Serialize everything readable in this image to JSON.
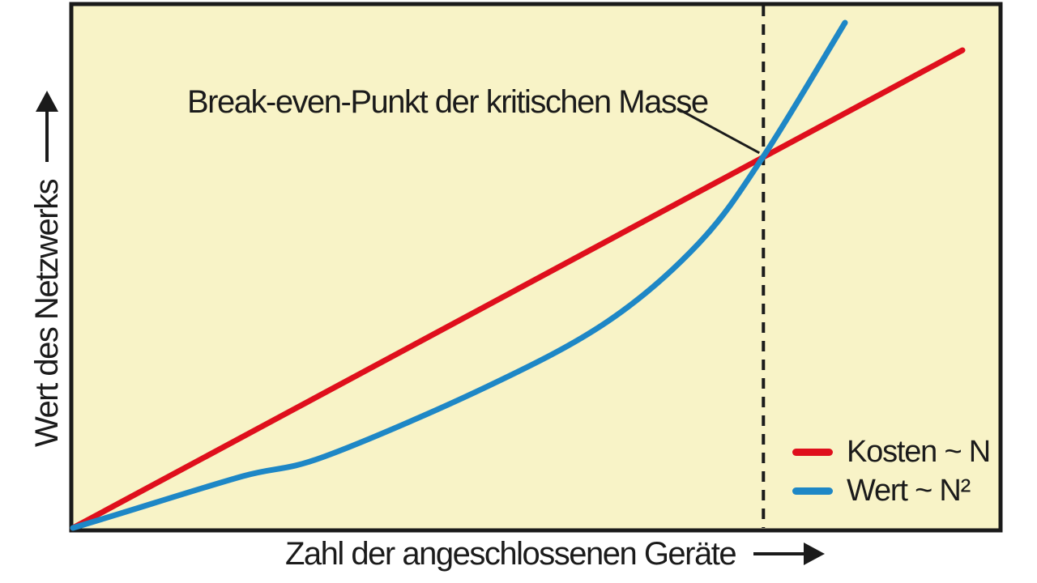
{
  "figure": {
    "background_color": "#ffffff",
    "plot_background_color": "#f8f3c7",
    "border_color": "#1a1a1a",
    "line_color": "#1b1b1b",
    "text_color": "#1b1b1b"
  },
  "icons": {
    "x_axis_arrow": "right-arrow",
    "y_axis_arrow": "up-arrow"
  },
  "chart_data": {
    "type": "line",
    "title": "",
    "annotation": "Break-even-Punkt der kritischen Masse",
    "xlabel": "Zahl der angeschlossenen Geräte",
    "ylabel": "Wert des Netzwerks",
    "xlim": [
      0,
      100
    ],
    "ylim": [
      0,
      100
    ],
    "axes_style": "schematic, no ticks, no gridlines, arrowed axis labels",
    "legend_position": "bottom-right inside plot",
    "plot_background": "#f8f3c7",
    "break_even": {
      "x": 74.5,
      "y": 71.2,
      "marker": "vertical dashed black line"
    },
    "series": [
      {
        "name": "Kosten ~ N",
        "color": "#df0f1c",
        "shape": "straight line from origin",
        "points": [
          [
            0,
            0
          ],
          [
            96.0,
            91.5
          ]
        ]
      },
      {
        "name": "Wert ~ N²",
        "color": "#1e87c6",
        "shape": "convex quadratic-like curve from origin",
        "points": [
          [
            0,
            0
          ],
          [
            5.2,
            2.8
          ],
          [
            18.4,
            9.9
          ],
          [
            27.1,
            13.6
          ],
          [
            44.6,
            27.0
          ],
          [
            57.7,
            39.5
          ],
          [
            67.6,
            54.5
          ],
          [
            74.6,
            71.3
          ],
          [
            83.3,
            96.8
          ]
        ]
      }
    ]
  }
}
